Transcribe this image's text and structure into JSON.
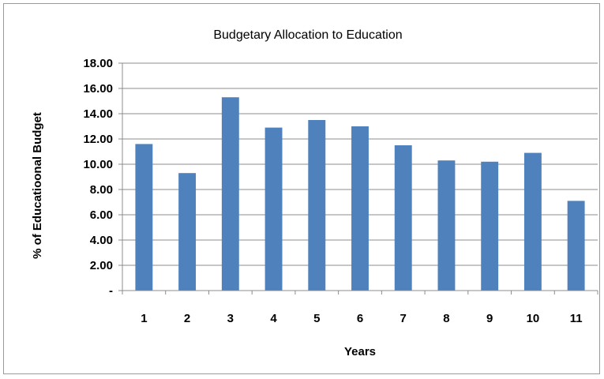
{
  "chart_data": {
    "type": "bar",
    "title": "Budgetary Allocation to Education",
    "xlabel": "Years",
    "ylabel": "% of Educatioonal Budget",
    "categories": [
      "1",
      "2",
      "3",
      "4",
      "5",
      "6",
      "7",
      "8",
      "9",
      "10",
      "11"
    ],
    "values": [
      11.6,
      9.3,
      15.3,
      12.9,
      13.5,
      13.0,
      11.5,
      10.3,
      10.2,
      10.9,
      7.1
    ],
    "ylim": [
      0,
      18
    ],
    "y_ticks": [
      0,
      2,
      4,
      6,
      8,
      10,
      12,
      14,
      16,
      18
    ],
    "y_tick_labels": [
      "-",
      "2.00",
      "4.00",
      "6.00",
      "8.00",
      "10.00",
      "12.00",
      "14.00",
      "16.00",
      "18.00"
    ],
    "grid": true,
    "legend": "none",
    "bar_color": "#4f81bd",
    "grid_color": "#8c8c8c"
  }
}
